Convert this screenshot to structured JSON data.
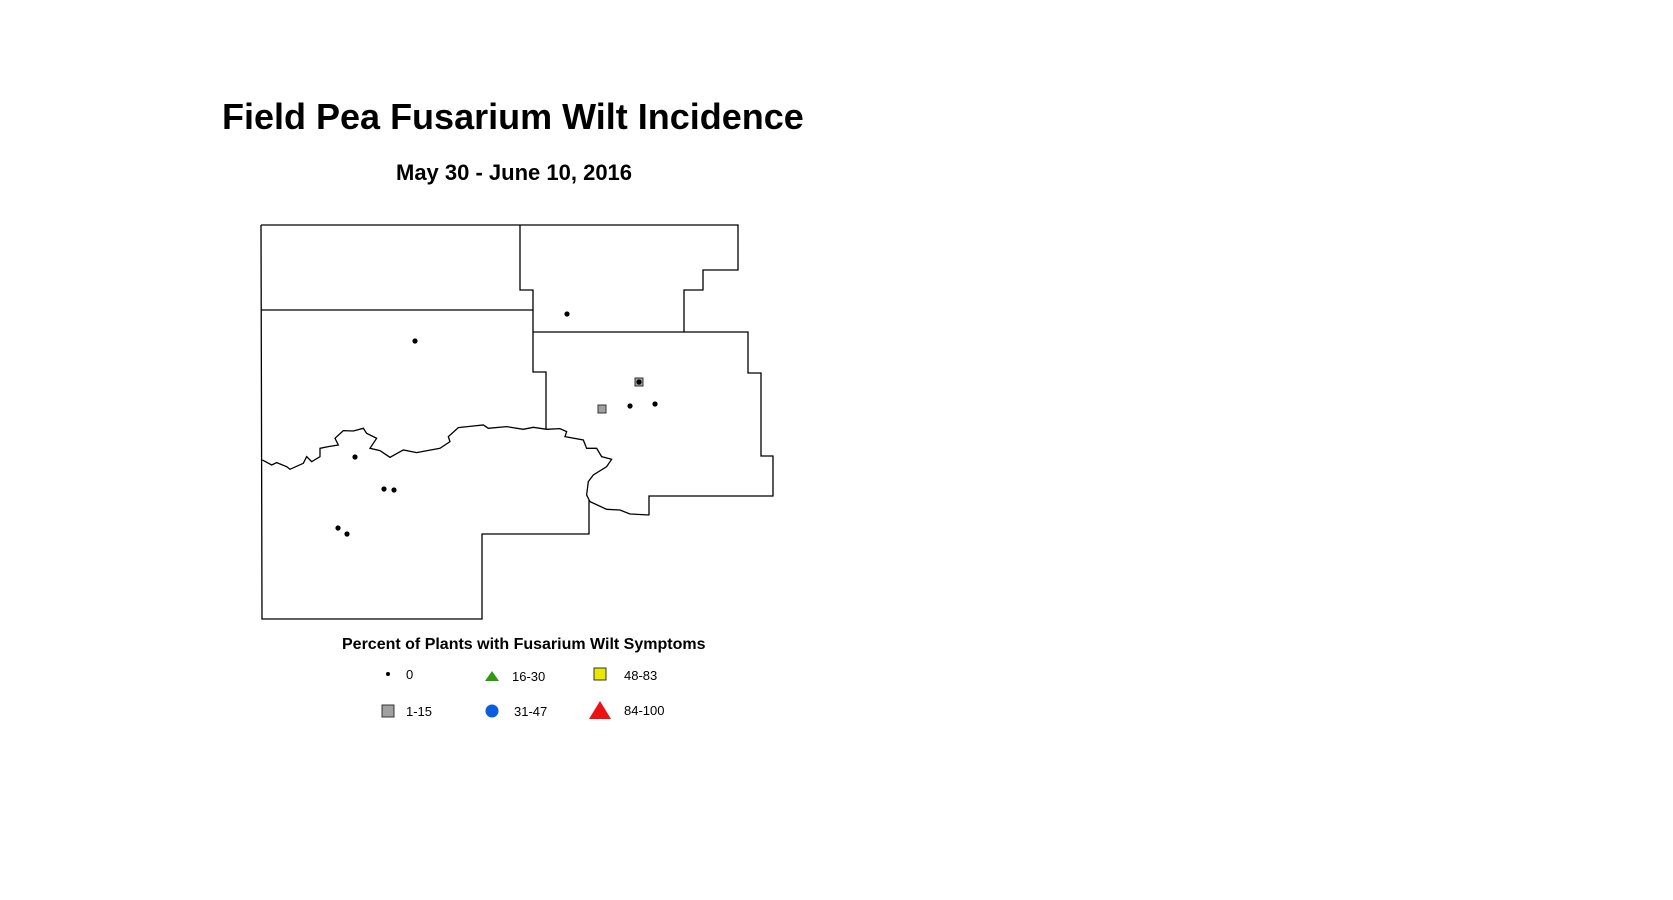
{
  "title": "Field Pea Fusarium Wilt Incidence",
  "subtitle": "May 30 - June 10, 2016",
  "legend": {
    "title": "Percent of Plants with Fusarium Wilt Symptoms",
    "items": [
      {
        "label": "0",
        "symbol": "small-black-dot",
        "color": "#000000"
      },
      {
        "label": "1-15",
        "symbol": "square",
        "color": "#a0a0a0"
      },
      {
        "label": "16-30",
        "symbol": "triangle",
        "color": "#2e9a10"
      },
      {
        "label": "31-47",
        "symbol": "circle",
        "color": "#0a5ce0"
      },
      {
        "label": "48-83",
        "symbol": "square",
        "color": "#e8e800"
      },
      {
        "label": "84-100",
        "symbol": "triangle",
        "color": "#ee1111"
      }
    ]
  },
  "samples": [
    "0",
    "0",
    "1-15",
    "0",
    "1-15",
    "0",
    "0",
    "0",
    "0",
    "0",
    "0",
    "0"
  ]
}
